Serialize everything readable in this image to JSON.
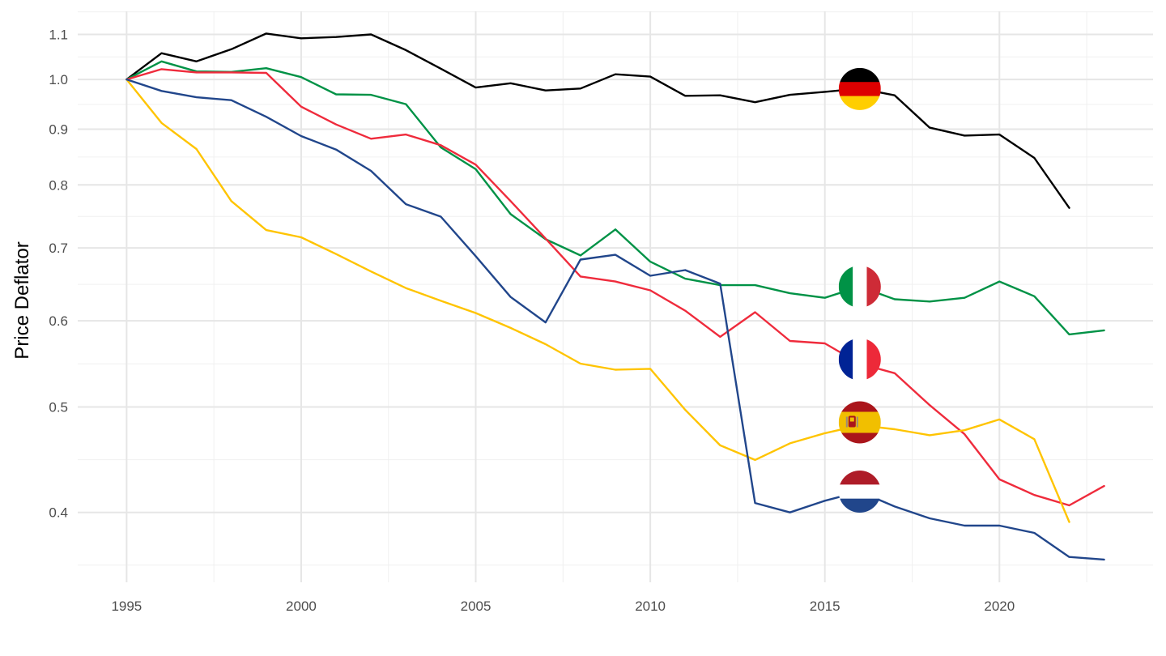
{
  "chart_data": {
    "type": "line",
    "title": "",
    "xlabel": "",
    "ylabel": "Price Deflator",
    "y_scale": "log",
    "ylim": [
      0.345,
      1.155
    ],
    "xlim": [
      1993.6,
      2024.4
    ],
    "grid": true,
    "x_ticks": [
      1995,
      2000,
      2005,
      2010,
      2015,
      2020
    ],
    "y_ticks": [
      0.4,
      0.5,
      0.6,
      0.7,
      0.8,
      0.9,
      1.0,
      1.1
    ],
    "x_tick_labels": [
      "1995",
      "2000",
      "2005",
      "2010",
      "2015",
      "2020"
    ],
    "y_tick_labels": [
      "0.4",
      "0.5",
      "0.6",
      "0.7",
      "0.8",
      "0.9",
      "1.0",
      "1.1"
    ],
    "x": [
      1995,
      1996,
      1997,
      1998,
      1999,
      2000,
      2001,
      2002,
      2003,
      2004,
      2005,
      2006,
      2007,
      2008,
      2009,
      2010,
      2011,
      2012,
      2013,
      2014,
      2015,
      2016,
      2017,
      2018,
      2019,
      2020,
      2021,
      2022,
      2023
    ],
    "series": [
      {
        "flag": "germany",
        "color": "#000000",
        "values": [
          1.0,
          1.057,
          1.039,
          1.066,
          1.102,
          1.091,
          1.094,
          1.1,
          1.064,
          1.023,
          0.983,
          0.992,
          0.977,
          0.981,
          1.011,
          1.006,
          0.966,
          0.967,
          0.953,
          0.968,
          0.974,
          0.981,
          0.967,
          0.903,
          0.888,
          0.89,
          0.847,
          0.762,
          null
        ]
      },
      {
        "flag": "italy",
        "color": "#009246",
        "values": [
          1.0,
          1.039,
          1.017,
          1.016,
          1.024,
          1.005,
          0.969,
          0.968,
          0.949,
          0.866,
          0.827,
          0.752,
          0.713,
          0.689,
          0.728,
          0.68,
          0.656,
          0.647,
          0.647,
          0.636,
          0.63,
          0.645,
          0.628,
          0.625,
          0.63,
          0.652,
          0.632,
          0.583,
          0.588
        ]
      },
      {
        "flag": "france",
        "color": "#EF2B3C",
        "values": [
          1.0,
          1.022,
          1.015,
          1.015,
          1.014,
          0.944,
          0.909,
          0.882,
          0.89,
          0.87,
          0.835,
          0.773,
          0.714,
          0.659,
          0.652,
          0.64,
          0.613,
          0.58,
          0.611,
          0.575,
          0.572,
          0.548,
          0.537,
          0.502,
          0.472,
          0.429,
          0.415,
          0.406,
          0.423
        ]
      },
      {
        "flag": "spain",
        "color": "#FFC400",
        "values": [
          1.0,
          0.912,
          0.863,
          0.773,
          0.727,
          0.716,
          0.691,
          0.666,
          0.643,
          0.626,
          0.61,
          0.591,
          0.571,
          0.548,
          0.541,
          0.542,
          0.497,
          0.461,
          0.447,
          0.463,
          0.473,
          0.481,
          0.477,
          0.471,
          0.476,
          0.487,
          0.467,
          0.392,
          null
        ]
      },
      {
        "flag": "netherlands",
        "color": "#21468B",
        "values": [
          1.0,
          0.976,
          0.963,
          0.957,
          0.924,
          0.887,
          0.862,
          0.824,
          0.768,
          0.748,
          0.688,
          0.631,
          0.598,
          0.683,
          0.69,
          0.66,
          0.668,
          0.649,
          0.408,
          0.4,
          0.41,
          0.418,
          0.405,
          0.395,
          0.389,
          0.389,
          0.383,
          0.364,
          0.362
        ]
      }
    ],
    "flags": [
      {
        "name": "germany",
        "x": 2016,
        "y": 0.98
      },
      {
        "name": "italy",
        "x": 2016,
        "y": 0.645
      },
      {
        "name": "france",
        "x": 2016,
        "y": 0.553
      },
      {
        "name": "spain",
        "x": 2016,
        "y": 0.484
      },
      {
        "name": "netherlands",
        "x": 2016,
        "y": 0.418
      }
    ]
  }
}
